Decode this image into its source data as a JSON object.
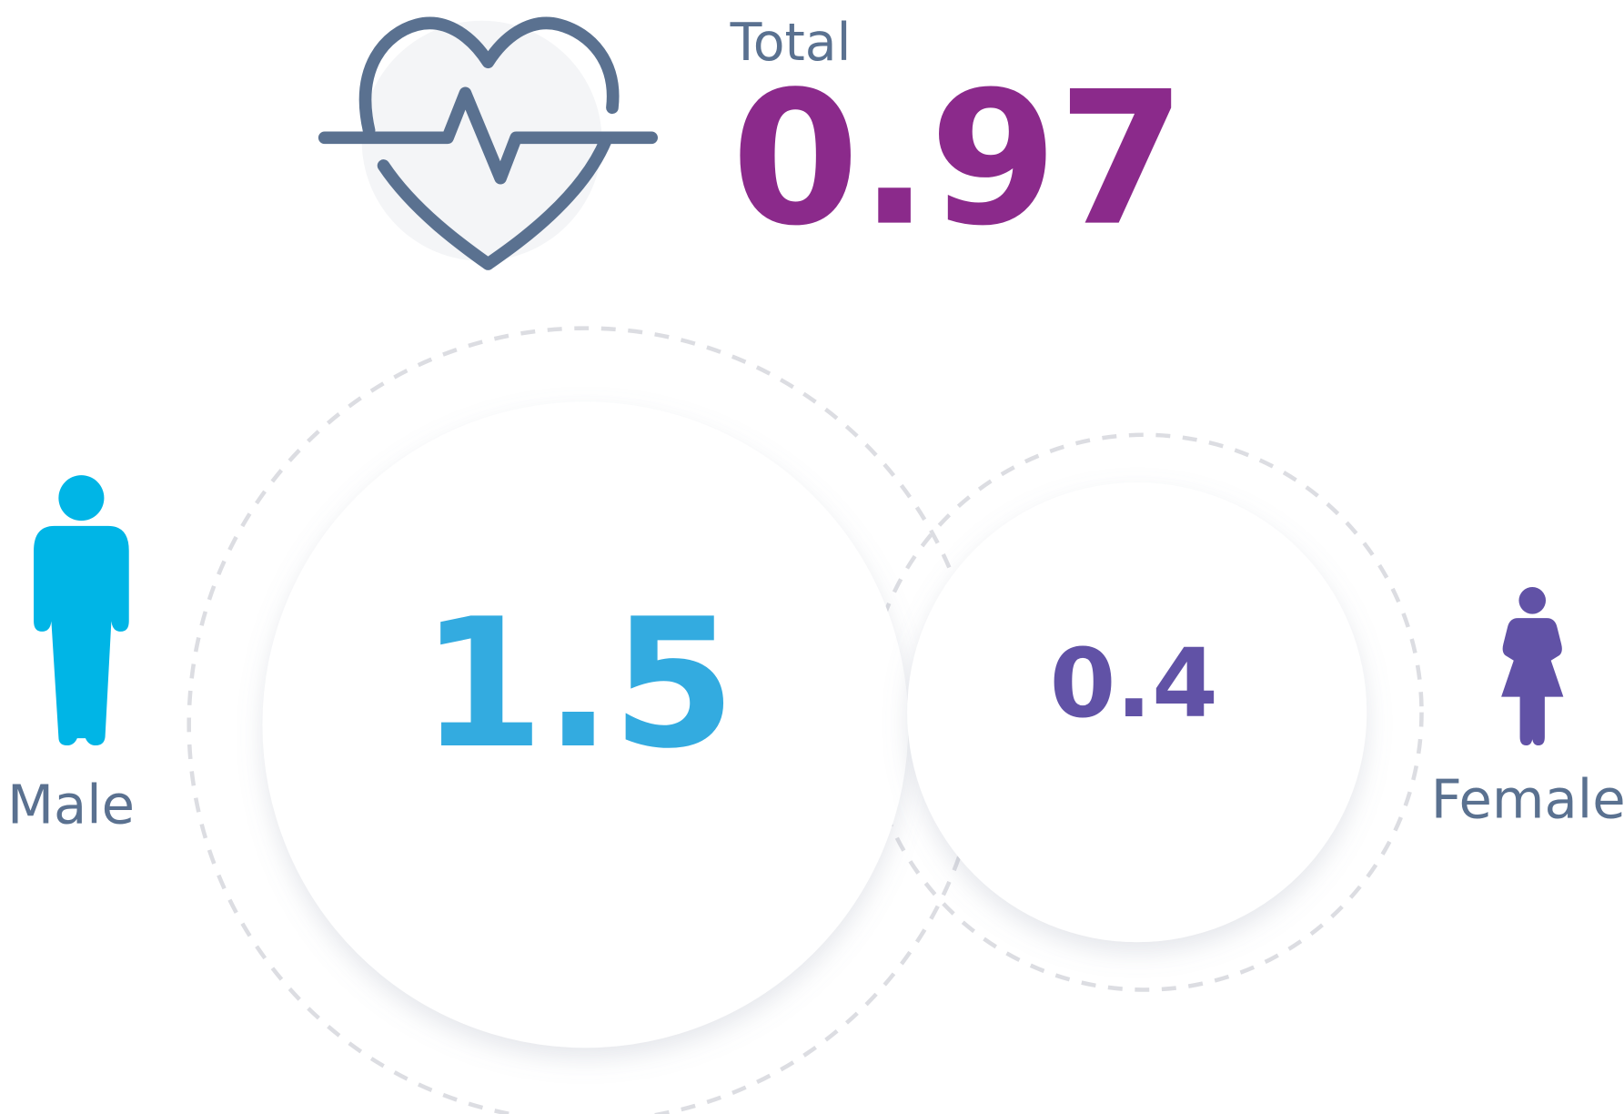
{
  "total": {
    "label": "Total",
    "value": 0.97
  },
  "male": {
    "label": "Male",
    "value": 1.5
  },
  "female": {
    "label": "Female",
    "value": 0.4
  }
}
